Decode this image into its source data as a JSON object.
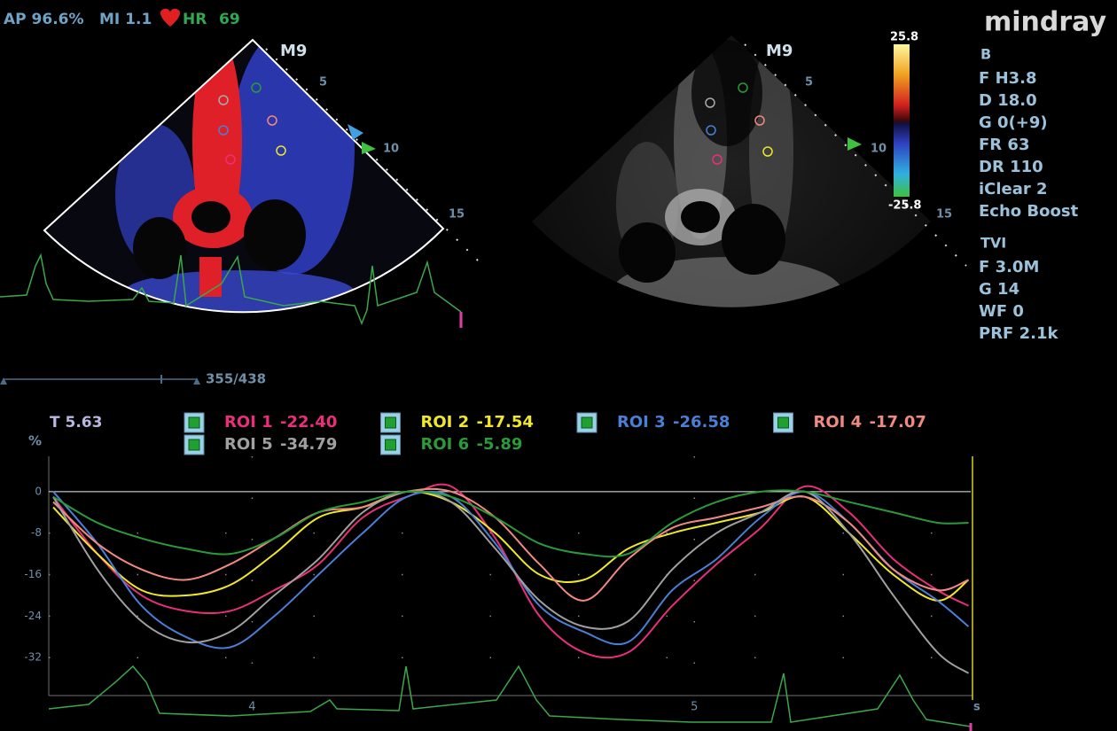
{
  "header": {
    "ap": "AP 96.6%",
    "mi": "MI 1.1",
    "hr_label": "HR",
    "hr": "69"
  },
  "brand": "mindray",
  "left_image": {
    "probe": "M9",
    "depths": [
      "5",
      "10",
      "15"
    ],
    "frame": "355/438"
  },
  "right_image": {
    "probe": "M9",
    "depths": [
      "5",
      "10",
      "15"
    ],
    "scale_max": "25.8",
    "scale_min": "-25.8"
  },
  "params": {
    "b_title": "B",
    "b_items": [
      "F H3.8",
      "D 18.0",
      "G 0(+9)",
      "FR 63",
      "DR 110",
      "iClear 2",
      "Echo Boost"
    ],
    "tvi_title": "TVI",
    "tvi_items": [
      "F 3.0M",
      "G 14",
      "WF 0",
      "PRF 2.1k"
    ]
  },
  "cursor_time": "T 5.63",
  "chart_data": {
    "type": "line",
    "y_label": "%",
    "x_label": "s",
    "x": [
      3.55,
      3.65,
      3.75,
      3.85,
      3.95,
      4.05,
      4.15,
      4.25,
      4.35,
      4.45,
      4.55,
      4.65,
      4.75,
      4.85,
      4.95,
      5.05,
      5.15,
      5.25,
      5.35,
      5.45,
      5.55,
      5.62
    ],
    "xlim": [
      3.54,
      5.625
    ],
    "xticks": [
      4,
      5
    ],
    "ylim": [
      -39.3,
      6.8
    ],
    "yticks": [
      0,
      -8,
      -16,
      -24,
      -32
    ],
    "series": [
      {
        "name": "ROI 1",
        "reading": "-22.40",
        "color": "#e8307a",
        "values": [
          -1,
          -12,
          -20,
          -23,
          -23,
          -19,
          -14,
          -5,
          -1,
          1,
          -9,
          -24,
          -31,
          -31,
          -22,
          -14,
          -7,
          1,
          -4,
          -13,
          -19,
          -22
        ]
      },
      {
        "name": "ROI 2",
        "reading": "-17.54",
        "color": "#f0e62a",
        "values": [
          -3,
          -12,
          -19,
          -20,
          -18,
          -12,
          -5,
          -3,
          0,
          -2,
          -8,
          -16,
          -17,
          -11,
          -8,
          -6,
          -4,
          -1,
          -8,
          -16,
          -21,
          -17
        ]
      },
      {
        "name": "ROI 3",
        "reading": "-26.58",
        "color": "#4a7fd6",
        "values": [
          0,
          -10,
          -22,
          -28,
          -30,
          -24,
          -16,
          -8,
          -1,
          -1,
          -10,
          -22,
          -27,
          -29,
          -19,
          -13,
          -5,
          0,
          -6,
          -15,
          -21,
          -26
        ]
      },
      {
        "name": "ROI 4",
        "reading": "-17.07",
        "color": "#f08a80",
        "values": [
          -2,
          -10,
          -15,
          -17,
          -14,
          -9,
          -4,
          -3,
          0,
          0,
          -5,
          -14,
          -21,
          -13,
          -7,
          -5,
          -3,
          -1,
          -6,
          -15,
          -19,
          -17
        ]
      },
      {
        "name": "ROI 5",
        "reading": "-34.79",
        "color": "#a0a0a0",
        "values": [
          -1,
          -15,
          -25,
          -29,
          -27,
          -20,
          -13,
          -4,
          0,
          -2,
          -11,
          -21,
          -26,
          -25,
          -15,
          -8,
          -4,
          0,
          -8,
          -20,
          -31,
          -35
        ]
      },
      {
        "name": "ROI 6",
        "reading": "-5.89",
        "color": "#2a9a3a",
        "values": [
          -1,
          -6,
          -9,
          -11,
          -12,
          -9,
          -4,
          -2,
          0,
          -1,
          -5,
          -10,
          -12,
          -12,
          -6,
          -2,
          0,
          0,
          -2,
          -4,
          -6,
          -6
        ]
      }
    ]
  }
}
